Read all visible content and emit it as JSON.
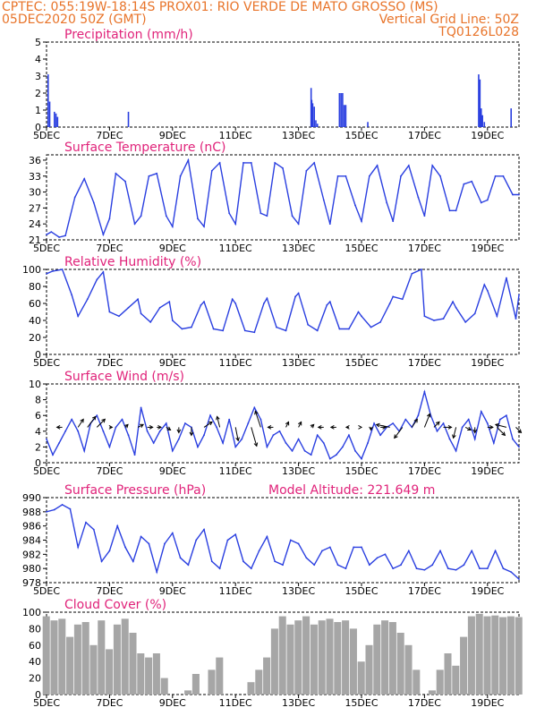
{
  "header": {
    "line1": "CPTEC:   055:19W-18:14S   PROX01: RIO VERDE DE MATO GROSSO (MS)",
    "line2_left": "05DEC2020 50Z (GMT)",
    "line2_right": "Vertical Grid Line: 50Z",
    "line3_right": "TQ0126L028"
  },
  "colors": {
    "header": "#e8742a",
    "title": "#e0237a",
    "line": "#2a3fe0",
    "cloud": "#a6a6a6"
  },
  "chart_data": [
    {
      "type": "bar",
      "title": "Precipitation (mm/h)",
      "ylim": [
        0,
        5
      ],
      "yticks": [
        0,
        1,
        2,
        3,
        4,
        5
      ],
      "xlim": [
        5,
        20
      ],
      "xticks": [
        5,
        7,
        9,
        11,
        13,
        15,
        17,
        19
      ],
      "xticklabels": [
        "5DEC",
        "7DEC",
        "9DEC",
        "11DEC",
        "13DEC",
        "15DEC",
        "17DEC",
        "19DEC"
      ],
      "x": [
        5.05,
        5.1,
        5.25,
        5.3,
        5.35,
        7.6,
        13.4,
        13.42,
        13.45,
        13.5,
        13.55,
        13.6,
        14.3,
        14.35,
        14.4,
        14.45,
        14.5,
        15.2,
        18.72,
        18.76,
        18.8,
        18.84,
        18.9,
        19.75
      ],
      "values": [
        3.1,
        1.5,
        0.9,
        0.8,
        0.6,
        0.9,
        2.3,
        1.6,
        1.4,
        1.2,
        0.4,
        0.2,
        2.0,
        2.0,
        2.0,
        1.3,
        1.3,
        0.3,
        3.1,
        2.8,
        1.1,
        0.7,
        0.3,
        1.1
      ]
    },
    {
      "type": "line",
      "title": "Surface Temperature (nC)",
      "ylim": [
        21,
        37
      ],
      "yticks": [
        21,
        24,
        27,
        30,
        33,
        36
      ],
      "xlim": [
        5,
        20
      ],
      "xticks": [
        5,
        7,
        9,
        11,
        13,
        15,
        17,
        19
      ],
      "xticklabels": [
        "5DEC",
        "7DEC",
        "9DEC",
        "11DEC",
        "13DEC",
        "15DEC",
        "17DEC",
        "19DEC"
      ],
      "x": [
        5.0,
        5.15,
        5.4,
        5.6,
        5.9,
        6.2,
        6.5,
        6.8,
        7.0,
        7.2,
        7.5,
        7.8,
        8.0,
        8.25,
        8.5,
        8.8,
        9.0,
        9.25,
        9.5,
        9.8,
        10.0,
        10.25,
        10.5,
        10.8,
        11.0,
        11.25,
        11.5,
        11.8,
        12.0,
        12.25,
        12.5,
        12.8,
        13.0,
        13.25,
        13.5,
        13.8,
        14.0,
        14.25,
        14.5,
        14.8,
        15.0,
        15.25,
        15.5,
        15.8,
        16.0,
        16.25,
        16.5,
        16.8,
        17.0,
        17.25,
        17.5,
        17.8,
        18.0,
        18.25,
        18.5,
        18.8,
        19.0,
        19.25,
        19.5,
        19.8,
        20.0
      ],
      "values": [
        22.0,
        22.5,
        21.5,
        21.8,
        29.0,
        32.5,
        28.0,
        22.0,
        25.0,
        33.5,
        32.0,
        24.0,
        25.5,
        33.0,
        33.5,
        25.5,
        23.5,
        33.0,
        36.0,
        25.0,
        23.5,
        34.0,
        35.5,
        26.0,
        24.0,
        35.5,
        35.5,
        26.0,
        25.5,
        35.5,
        34.5,
        25.5,
        24.0,
        34.0,
        35.5,
        28.5,
        24.0,
        33.0,
        33.0,
        27.5,
        24.5,
        33.0,
        35.0,
        28.0,
        24.5,
        33.0,
        35.0,
        29.0,
        25.5,
        35.0,
        33.0,
        26.5,
        26.5,
        31.5,
        32.0,
        28.0,
        28.5,
        33.0,
        33.0,
        29.5,
        29.5
      ]
    },
    {
      "type": "line",
      "title": "Relative Humidity (%)",
      "ylim": [
        0,
        100
      ],
      "yticks": [
        0,
        20,
        40,
        60,
        80,
        100
      ],
      "xlim": [
        5,
        20
      ],
      "xticks": [
        5,
        7,
        9,
        11,
        13,
        15,
        17,
        19
      ],
      "xticklabels": [
        "5DEC",
        "7DEC",
        "9DEC",
        "11DEC",
        "13DEC",
        "15DEC",
        "17DEC",
        "19DEC"
      ],
      "x": [
        5.0,
        5.2,
        5.5,
        5.8,
        6.0,
        6.3,
        6.6,
        6.8,
        7.0,
        7.3,
        7.6,
        7.9,
        8.0,
        8.3,
        8.6,
        8.9,
        9.0,
        9.3,
        9.6,
        9.9,
        10.0,
        10.3,
        10.6,
        10.9,
        11.0,
        11.3,
        11.6,
        11.9,
        12.0,
        12.3,
        12.6,
        12.9,
        13.0,
        13.3,
        13.6,
        13.9,
        14.0,
        14.3,
        14.6,
        14.9,
        15.0,
        15.3,
        15.6,
        15.9,
        16.0,
        16.3,
        16.6,
        16.9,
        17.0,
        17.3,
        17.6,
        17.9,
        18.0,
        18.3,
        18.6,
        18.9,
        19.0,
        19.3,
        19.6,
        19.9,
        20.0
      ],
      "values": [
        95.0,
        98.0,
        100.0,
        70.0,
        45.0,
        65.0,
        88.0,
        97.0,
        50.0,
        45.0,
        55.0,
        65.0,
        48.0,
        38.0,
        55.0,
        62.0,
        40.0,
        30.0,
        32.0,
        58.0,
        62.0,
        30.0,
        28.0,
        65.0,
        60.0,
        28.0,
        26.0,
        60.0,
        66.0,
        32.0,
        28.0,
        68.0,
        72.0,
        35.0,
        28.0,
        58.0,
        62.0,
        30.0,
        30.0,
        50.0,
        45.0,
        32.0,
        38.0,
        60.0,
        68.0,
        65.0,
        95.0,
        100.0,
        45.0,
        40.0,
        42.0,
        62.0,
        55.0,
        38.0,
        48.0,
        82.0,
        75.0,
        45.0,
        90.0,
        42.0,
        70.0
      ]
    },
    {
      "type": "line",
      "title": "Surface Wind (m/s)",
      "ylim": [
        0,
        10
      ],
      "yticks": [
        0,
        2,
        4,
        6,
        8,
        10
      ],
      "xlim": [
        5,
        20
      ],
      "xticks": [
        5,
        7,
        9,
        11,
        13,
        15,
        17,
        19
      ],
      "xticklabels": [
        "5DEC",
        "7DEC",
        "9DEC",
        "11DEC",
        "13DEC",
        "15DEC",
        "17DEC",
        "19DEC"
      ],
      "x": [
        5.0,
        5.2,
        5.4,
        5.6,
        5.8,
        6.0,
        6.2,
        6.4,
        6.6,
        6.8,
        7.0,
        7.2,
        7.4,
        7.6,
        7.8,
        8.0,
        8.2,
        8.4,
        8.6,
        8.8,
        9.0,
        9.2,
        9.4,
        9.6,
        9.8,
        10.0,
        10.2,
        10.4,
        10.6,
        10.8,
        11.0,
        11.2,
        11.4,
        11.6,
        11.8,
        12.0,
        12.2,
        12.4,
        12.6,
        12.8,
        13.0,
        13.2,
        13.4,
        13.6,
        13.8,
        14.0,
        14.2,
        14.4,
        14.6,
        14.8,
        15.0,
        15.2,
        15.4,
        15.6,
        15.8,
        16.0,
        16.2,
        16.4,
        16.6,
        16.8,
        17.0,
        17.2,
        17.4,
        17.6,
        17.8,
        18.0,
        18.2,
        18.4,
        18.6,
        18.8,
        19.0,
        19.2,
        19.4,
        19.6,
        19.8,
        20.0
      ],
      "values": [
        3.0,
        1.0,
        2.5,
        4.0,
        5.5,
        4.0,
        1.5,
        5.0,
        6.0,
        4.0,
        2.0,
        4.5,
        5.5,
        3.5,
        1.0,
        7.0,
        4.0,
        2.5,
        4.0,
        5.0,
        1.5,
        3.0,
        5.0,
        4.5,
        2.0,
        3.5,
        6.0,
        4.5,
        2.5,
        5.5,
        2.0,
        3.0,
        5.0,
        7.0,
        5.5,
        2.0,
        3.5,
        4.0,
        2.5,
        1.5,
        3.0,
        1.5,
        1.0,
        3.5,
        2.5,
        0.5,
        1.0,
        2.0,
        3.5,
        1.5,
        0.5,
        2.5,
        5.0,
        3.5,
        4.5,
        5.0,
        4.0,
        5.5,
        4.5,
        6.0,
        9.0,
        6.0,
        4.0,
        5.0,
        3.0,
        1.5,
        4.5,
        5.5,
        3.0,
        6.5,
        5.0,
        2.5,
        5.5,
        6.0,
        3.0,
        2.0
      ]
    },
    {
      "type": "line",
      "title": "Surface Pressure (hPa)",
      "annotation": "Model Altitude: 221.649 m",
      "ylim": [
        978,
        990
      ],
      "yticks": [
        978,
        980,
        982,
        984,
        986,
        988,
        990
      ],
      "xlim": [
        5,
        20
      ],
      "xticks": [
        5,
        7,
        9,
        11,
        13,
        15,
        17,
        19
      ],
      "xticklabels": [
        "5DEC",
        "7DEC",
        "9DEC",
        "11DEC",
        "13DEC",
        "15DEC",
        "17DEC",
        "19DEC"
      ],
      "x": [
        5.0,
        5.25,
        5.5,
        5.75,
        6.0,
        6.25,
        6.5,
        6.75,
        7.0,
        7.25,
        7.5,
        7.75,
        8.0,
        8.25,
        8.5,
        8.75,
        9.0,
        9.25,
        9.5,
        9.75,
        10.0,
        10.25,
        10.5,
        10.75,
        11.0,
        11.25,
        11.5,
        11.75,
        12.0,
        12.25,
        12.5,
        12.75,
        13.0,
        13.25,
        13.5,
        13.75,
        14.0,
        14.25,
        14.5,
        14.75,
        15.0,
        15.25,
        15.5,
        15.75,
        16.0,
        16.25,
        16.5,
        16.75,
        17.0,
        17.25,
        17.5,
        17.75,
        18.0,
        18.25,
        18.5,
        18.75,
        19.0,
        19.25,
        19.5,
        19.75,
        20.0
      ],
      "values": [
        988.0,
        988.3,
        989.0,
        988.4,
        983.0,
        986.5,
        985.5,
        981.0,
        982.5,
        986.0,
        983.0,
        981.0,
        984.5,
        983.5,
        979.5,
        983.5,
        985.0,
        981.5,
        980.5,
        984.0,
        985.5,
        981.0,
        980.0,
        984.0,
        984.8,
        981.0,
        980.0,
        982.5,
        984.5,
        981.0,
        980.5,
        984.0,
        983.5,
        981.5,
        980.5,
        982.5,
        983.0,
        980.5,
        980.0,
        983.0,
        983.0,
        980.5,
        981.5,
        982.0,
        980.0,
        980.5,
        982.5,
        980.0,
        979.8,
        980.5,
        982.5,
        980.0,
        979.8,
        980.5,
        982.5,
        980.0,
        980.0,
        982.5,
        980.0,
        979.5,
        978.5
      ]
    },
    {
      "type": "bar",
      "title": "Cloud Cover (%)",
      "ylim": [
        0,
        100
      ],
      "yticks": [
        0,
        20,
        40,
        60,
        80,
        100
      ],
      "xlim": [
        5,
        20
      ],
      "xticks": [
        5,
        7,
        9,
        11,
        13,
        15,
        17,
        19
      ],
      "xticklabels": [
        "5DEC",
        "7DEC",
        "9DEC",
        "11DEC",
        "13DEC",
        "15DEC",
        "17DEC",
        "19DEC"
      ],
      "x": [
        5.0,
        5.25,
        5.5,
        5.75,
        6.0,
        6.25,
        6.5,
        6.75,
        7.0,
        7.25,
        7.5,
        7.75,
        8.0,
        8.25,
        8.5,
        8.75,
        9.0,
        9.25,
        9.5,
        9.75,
        10.0,
        10.25,
        10.5,
        10.75,
        11.0,
        11.25,
        11.5,
        11.75,
        12.0,
        12.25,
        12.5,
        12.75,
        13.0,
        13.25,
        13.5,
        13.75,
        14.0,
        14.25,
        14.5,
        14.75,
        15.0,
        15.25,
        15.5,
        15.75,
        16.0,
        16.25,
        16.5,
        16.75,
        17.0,
        17.25,
        17.5,
        17.75,
        18.0,
        18.25,
        18.5,
        18.75,
        19.0,
        19.25,
        19.5,
        19.75,
        20.0
      ],
      "values": [
        95,
        90,
        92,
        70,
        85,
        88,
        60,
        90,
        55,
        85,
        92,
        75,
        50,
        45,
        50,
        20,
        0,
        0,
        5,
        25,
        0,
        30,
        45,
        0,
        0,
        0,
        15,
        30,
        45,
        80,
        95,
        85,
        90,
        95,
        85,
        90,
        92,
        88,
        90,
        80,
        40,
        60,
        85,
        90,
        88,
        75,
        60,
        30,
        0,
        5,
        30,
        50,
        35,
        70,
        95,
        98,
        95,
        96,
        94,
        95,
        94
      ]
    }
  ],
  "wind_vectors": {
    "x": [
      5.5,
      6.0,
      6.3,
      6.6,
      7.0,
      7.5,
      7.9,
      8.2,
      8.5,
      8.8,
      9.2,
      9.6,
      10.0,
      10.5,
      11.0,
      11.5,
      11.8,
      12.2,
      12.6,
      13.0,
      13.4,
      13.8,
      14.2,
      14.6,
      15.0,
      15.3,
      15.6,
      15.9,
      16.3,
      16.6,
      17.0,
      17.3,
      17.6,
      18.0,
      18.3,
      18.6,
      19.0,
      19.3,
      19.6,
      19.9
    ],
    "u": [
      -1.0,
      1.0,
      1.5,
      1.5,
      0.5,
      0.5,
      1.0,
      1.0,
      0.8,
      0.8,
      0.0,
      0.0,
      1.5,
      -0.5,
      0.5,
      1.0,
      -1.0,
      -1.0,
      0.5,
      0.5,
      0.5,
      -1.0,
      -1.0,
      -0.5,
      0.0,
      0.0,
      1.0,
      -2.5,
      -1.5,
      1.0,
      1.0,
      1.0,
      1.5,
      -0.5,
      1.0,
      0.0,
      1.0,
      1.5,
      -2.0,
      1.0
    ],
    "v": [
      0.0,
      1.5,
      2.0,
      1.5,
      0.0,
      0.5,
      0.5,
      0.0,
      0.0,
      -0.5,
      -1.0,
      -1.5,
      1.0,
      2.0,
      -2.5,
      -3.5,
      3.0,
      0.0,
      1.0,
      1.0,
      0.5,
      0.0,
      0.0,
      0.0,
      0.0,
      -0.5,
      0.0,
      0.5,
      -2.0,
      1.5,
      2.5,
      1.0,
      0.0,
      -2.0,
      -0.5,
      -1.0,
      0.0,
      -1.5,
      0.5,
      -1.0
    ]
  }
}
